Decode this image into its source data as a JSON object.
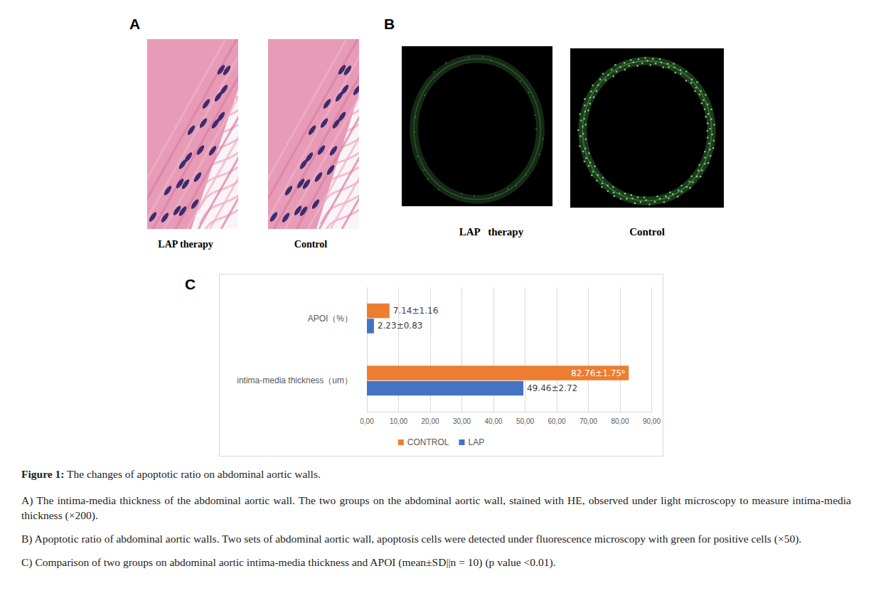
{
  "panels": {
    "A": {
      "label": "A",
      "images": [
        {
          "caption": "LAP therapy"
        },
        {
          "caption": "Control"
        }
      ]
    },
    "B": {
      "label": "B",
      "images": [
        {
          "caption": "LAP   therapy"
        },
        {
          "caption": "Control"
        }
      ]
    },
    "C": {
      "label": "C"
    }
  },
  "chart_data": {
    "type": "bar",
    "orientation": "horizontal",
    "categories": [
      "APOI（%）",
      "intima-media thickness（um）"
    ],
    "series": [
      {
        "name": "CONTROL",
        "color": "#ED7D31",
        "values": [
          7.14,
          82.76
        ],
        "value_labels": [
          "7.14±1.16",
          "82.76±1.75ᵇ"
        ]
      },
      {
        "name": "LAP",
        "color": "#4472C4",
        "values": [
          2.23,
          49.46
        ],
        "value_labels": [
          "2.23±0.83",
          "49.46±2.72"
        ]
      }
    ],
    "xlim": [
      0,
      90
    ],
    "xticks": [
      {
        "value": 0,
        "label": "0,00"
      },
      {
        "value": 10,
        "label": "10,00"
      },
      {
        "value": 20,
        "label": "20,00"
      },
      {
        "value": 30,
        "label": "30,00"
      },
      {
        "value": 40,
        "label": "40,00"
      },
      {
        "value": 50,
        "label": "50,00"
      },
      {
        "value": 60,
        "label": "60,00"
      },
      {
        "value": 70,
        "label": "70,00"
      },
      {
        "value": 80,
        "label": "80,00"
      },
      {
        "value": 90,
        "label": "90,00"
      }
    ],
    "grid": true,
    "legend": "bottom",
    "data_labels": true
  },
  "caption": {
    "title": "Figure 1:",
    "text": "The changes of apoptotic ratio on abdominal aortic walls.",
    "items": [
      "A) The intima-media thickness of the abdominal aortic wall. The two groups on the abdominal aortic wall, stained with HE, observed under light microscopy to measure intima-media thickness (×200).",
      "B) Apoptotic ratio of abdominal aortic walls. Two sets of abdominal aortic wall, apoptosis cells were detected under fluorescence microscopy with green for positive cells (×50).",
      "C) Comparison of two groups on abdominal aortic intima-media thickness and APOI (mean±SD||n = 10) (p value <0.01)."
    ]
  }
}
